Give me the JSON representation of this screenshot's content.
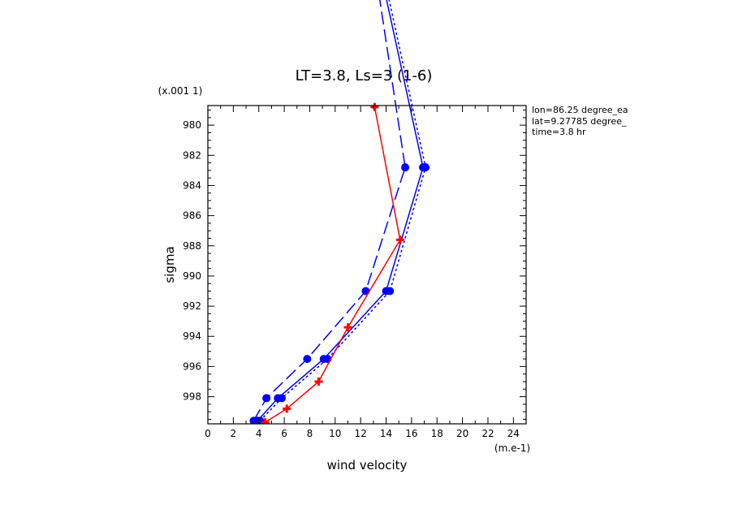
{
  "chart_data": {
    "type": "line",
    "title": "LT=3.8, Ls=3 (1-6)",
    "xlabel": "wind velocity",
    "ylabel": "sigma",
    "x_unit": "(m.e-1)",
    "y_unit": "(x.001 1)",
    "xlim": [
      0,
      25
    ],
    "ylim": [
      978.7,
      999.8
    ],
    "y_inverted": true,
    "x_ticks": [
      "0",
      "2",
      "4",
      "6",
      "8",
      "10",
      "12",
      "14",
      "16",
      "18",
      "20",
      "22",
      "24"
    ],
    "y_ticks": [
      "980",
      "982",
      "984",
      "986",
      "988",
      "990",
      "992",
      "994",
      "996",
      "998"
    ],
    "info": [
      "lon=86.25 degree_ea",
      "lat=9.27785 degree_",
      "time=3.8 hr"
    ],
    "series": [
      {
        "color": "#0000ff",
        "dash": "",
        "marker": "dot",
        "points": [
          [
            3.9,
            999.6
          ],
          [
            5.5,
            998.1
          ],
          [
            9.1,
            995.5
          ],
          [
            14.0,
            991.0
          ],
          [
            16.9,
            982.8
          ],
          [
            13.6,
            970
          ]
        ]
      },
      {
        "color": "#0000ff",
        "dash": "16,6",
        "marker": "dot",
        "points": [
          [
            3.6,
            999.6
          ],
          [
            4.6,
            998.1
          ],
          [
            7.8,
            995.5
          ],
          [
            12.4,
            991.0
          ],
          [
            15.5,
            982.8
          ],
          [
            13.2,
            970
          ]
        ]
      },
      {
        "color": "#0000ff",
        "dash": "3,3",
        "marker": "dot",
        "points": [
          [
            4.1,
            999.6
          ],
          [
            5.8,
            998.1
          ],
          [
            9.4,
            995.5
          ],
          [
            14.3,
            991.0
          ],
          [
            17.1,
            982.8
          ],
          [
            13.8,
            970
          ]
        ]
      },
      {
        "color": "#ff0000",
        "dash": "",
        "marker": "cross",
        "points": [
          [
            4.5,
            999.7
          ],
          [
            6.2,
            998.8
          ],
          [
            8.7,
            997.0
          ],
          [
            11.0,
            993.4
          ],
          [
            15.1,
            987.6
          ],
          [
            13.1,
            978.8
          ]
        ]
      }
    ]
  }
}
